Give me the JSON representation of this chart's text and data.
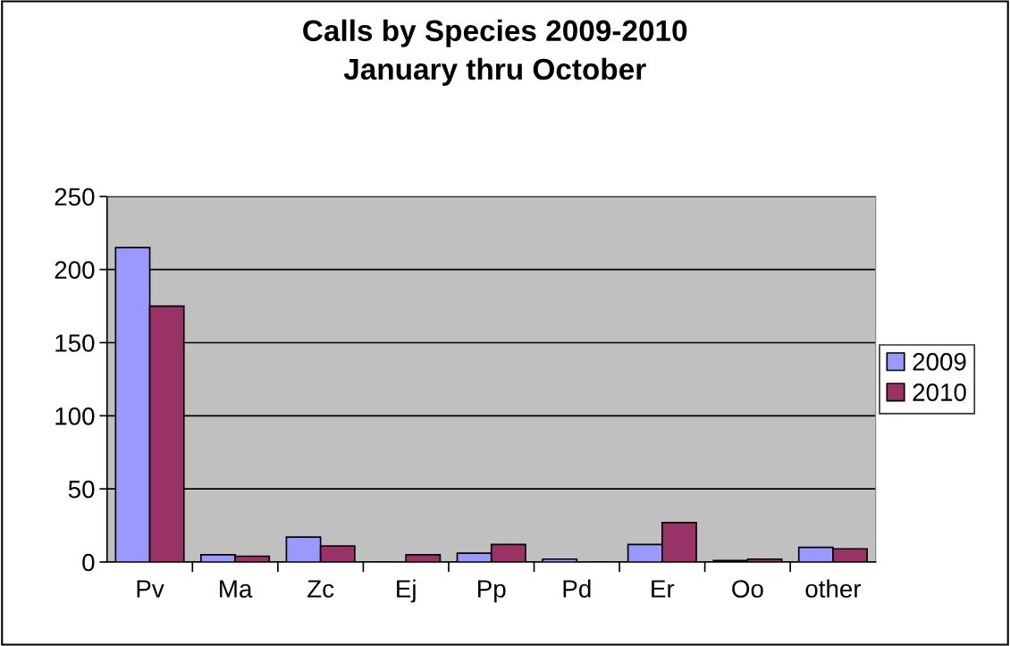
{
  "chart_data": {
    "type": "bar",
    "title": "Calls by Species 2009-2010\nJanuary thru October",
    "categories": [
      "Pv",
      "Ma",
      "Zc",
      "Ej",
      "Pp",
      "Pd",
      "Er",
      "Oo",
      "other"
    ],
    "series": [
      {
        "name": "2009",
        "color": "#9999ff",
        "values": [
          215,
          5,
          17,
          null,
          6,
          2,
          12,
          1,
          10
        ]
      },
      {
        "name": "2010",
        "color": "#993366",
        "values": [
          175,
          4,
          11,
          5,
          12,
          null,
          27,
          2,
          9
        ]
      }
    ],
    "ylim": [
      0,
      250
    ],
    "yticks": [
      0,
      50,
      100,
      150,
      200,
      250
    ],
    "grid": "y",
    "legend": "right"
  }
}
